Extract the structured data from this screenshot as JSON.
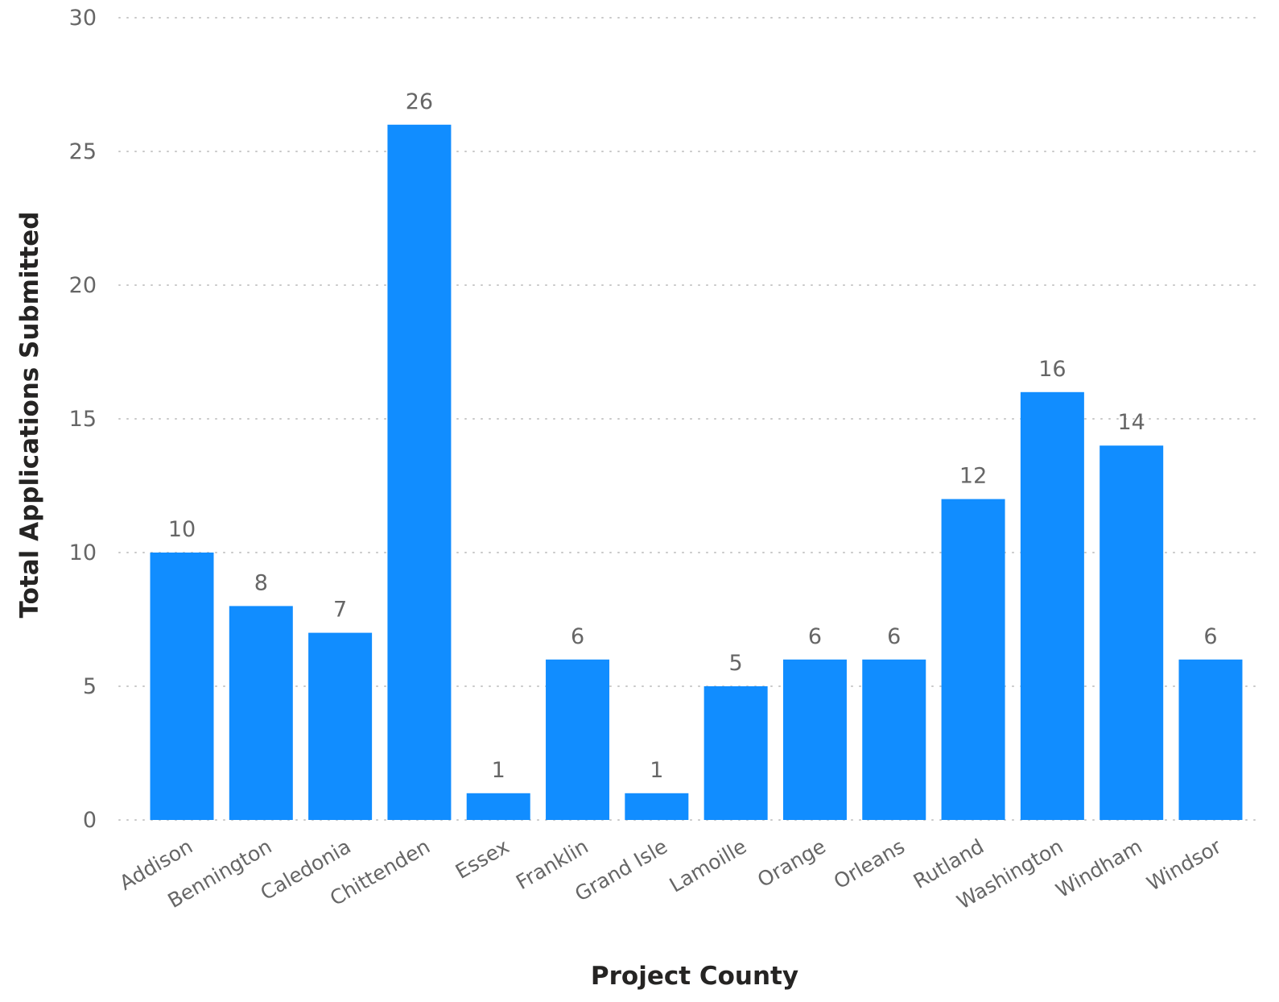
{
  "chart_data": {
    "type": "bar",
    "title": "",
    "xlabel": "Project County",
    "ylabel": "Total Applications Submitted",
    "ylim": [
      0,
      30
    ],
    "yticks": [
      0,
      5,
      10,
      15,
      20,
      25,
      30
    ],
    "grid": true,
    "legend": "none",
    "bar_color": "#118DFF",
    "data_labels": true,
    "categories": [
      "Addison",
      "Bennington",
      "Caledonia",
      "Chittenden",
      "Essex",
      "Franklin",
      "Grand Isle",
      "Lamoille",
      "Orange",
      "Orleans",
      "Rutland",
      "Washington",
      "Windham",
      "Windsor"
    ],
    "values": [
      10,
      8,
      7,
      26,
      1,
      6,
      1,
      5,
      6,
      6,
      12,
      16,
      14,
      6
    ]
  }
}
